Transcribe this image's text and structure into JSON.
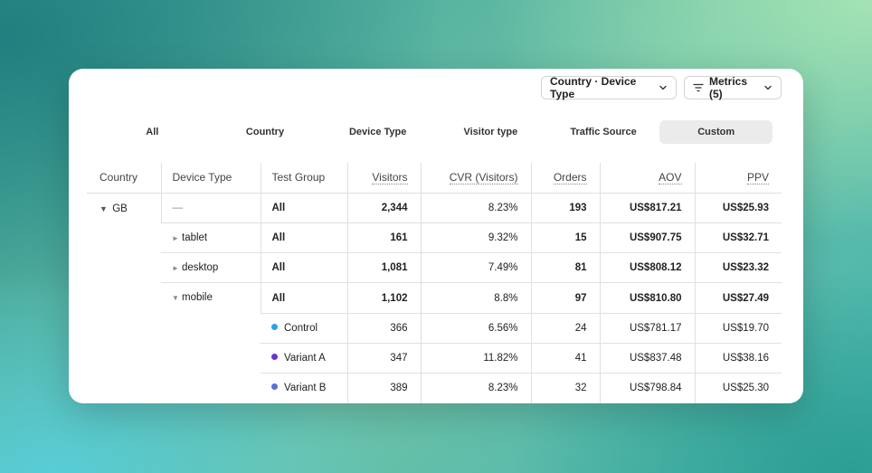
{
  "toolbar": {
    "grouping_label": "Country · Device Type",
    "metrics_label": "Metrics (5)"
  },
  "tabs": [
    {
      "label": "All",
      "active": false
    },
    {
      "label": "Country",
      "active": false
    },
    {
      "label": "Device Type",
      "active": false
    },
    {
      "label": "Visitor type",
      "active": false
    },
    {
      "label": "Traffic Source",
      "active": false
    },
    {
      "label": "Custom",
      "active": true
    }
  ],
  "table": {
    "headers": {
      "country": "Country",
      "device_type": "Device Type",
      "test_group": "Test Group",
      "visitors": "Visitors",
      "cvr": "CVR (Visitors)",
      "orders": "Orders",
      "aov": "AOV",
      "ppv": "PPV"
    },
    "country": "GB",
    "rows": [
      {
        "device": "—",
        "group": "All",
        "visitors": "2,344",
        "cvr": "8.23%",
        "orders": "193",
        "aov": "US$817.21",
        "ppv": "US$25.93"
      },
      {
        "device": "tablet",
        "group": "All",
        "visitors": "161",
        "cvr": "9.32%",
        "orders": "15",
        "aov": "US$907.75",
        "ppv": "US$32.71"
      },
      {
        "device": "desktop",
        "group": "All",
        "visitors": "1,081",
        "cvr": "7.49%",
        "orders": "81",
        "aov": "US$808.12",
        "ppv": "US$23.32"
      },
      {
        "device": "mobile",
        "group": "All",
        "visitors": "1,102",
        "cvr": "8.8%",
        "orders": "97",
        "aov": "US$810.80",
        "ppv": "US$27.49"
      },
      {
        "device": "",
        "group": "Control",
        "group_color": "#2f9fe0",
        "visitors": "366",
        "cvr": "6.56%",
        "orders": "24",
        "aov": "US$781.17",
        "ppv": "US$19.70"
      },
      {
        "device": "",
        "group": "Variant A",
        "group_color": "#6a35d0",
        "visitors": "347",
        "cvr": "11.82%",
        "orders": "41",
        "aov": "US$837.48",
        "ppv": "US$38.16"
      },
      {
        "device": "",
        "group": "Variant B",
        "group_color": "#5a6fd8",
        "visitors": "389",
        "cvr": "8.23%",
        "orders": "32",
        "aov": "US$798.84",
        "ppv": "US$25.30"
      }
    ]
  }
}
